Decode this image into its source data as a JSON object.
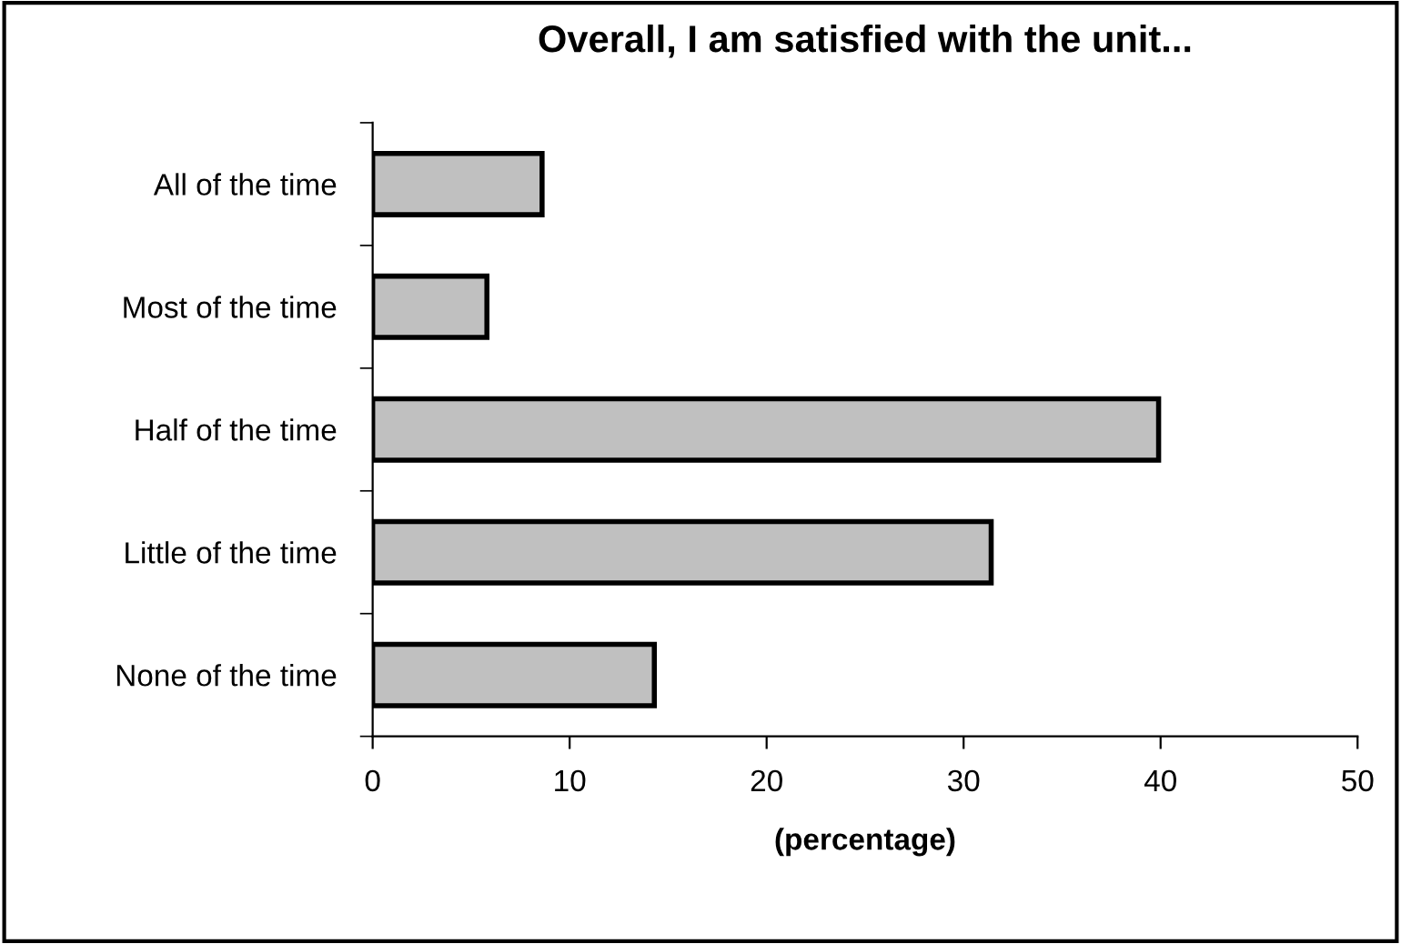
{
  "chart_data": {
    "type": "bar",
    "orientation": "horizontal",
    "title": "Overall, I am satisfied with the unit...",
    "xlabel": "(percentage)",
    "categories": [
      "All of the time",
      "Most of the time",
      "Half of the time",
      "Little of the time",
      "None of the time"
    ],
    "values": [
      8.6,
      5.8,
      39.9,
      31.4,
      14.3
    ],
    "color": "#c0c0c0",
    "xlim": [
      0,
      50
    ],
    "xticks": [
      0,
      10,
      20,
      30,
      40,
      50
    ],
    "grid": false,
    "legend": false
  }
}
